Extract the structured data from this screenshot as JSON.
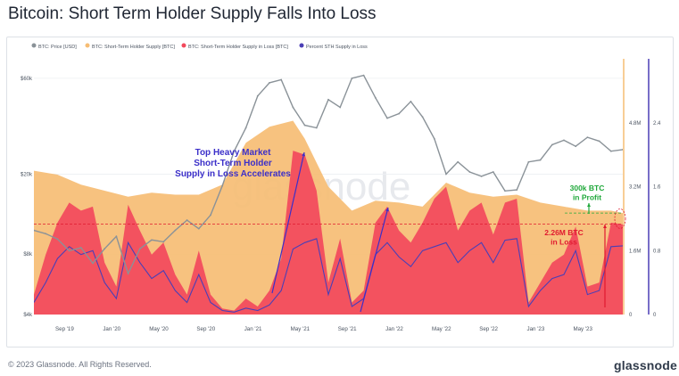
{
  "title": "Bitcoin: Short Term Holder Supply Falls Into Loss",
  "footer": {
    "copyright": "© 2023 Glassnode. All Rights Reserved.",
    "brand": "glassnode"
  },
  "watermark": "glassnode",
  "colors": {
    "price": "#8a9298",
    "sth_supply": "#f6bd74",
    "sth_loss": "#f2495c",
    "percent_loss": "#4b3fb6",
    "annotation_blue": "#3b2fc9",
    "annotation_green": "#1fa83a",
    "annotation_red": "#e0192f"
  },
  "chart_data": {
    "type": "area",
    "legend": {
      "placement": "top-left",
      "entries": [
        {
          "key": "price",
          "label": "BTC: Price [USD]",
          "color": "#8a9298"
        },
        {
          "key": "sth_supply",
          "label": "BTC: Short-Term Holder Supply [BTC]",
          "color": "#f6bd74"
        },
        {
          "key": "sth_loss",
          "label": "BTC: Short-Term Holder Supply in Loss [BTC]",
          "color": "#f2495c"
        },
        {
          "key": "percent_loss",
          "label": "Percent STH Supply in Loss",
          "color": "#4b3fb6"
        }
      ]
    },
    "x_ticks": [
      "Sep '19",
      "Jan '20",
      "May '20",
      "Sep '20",
      "Jan '21",
      "May '21",
      "Sep '21",
      "Jan '22",
      "May '22",
      "Sep '22",
      "Jan '23",
      "May '23"
    ],
    "x_range": [
      "2019-07",
      "2023-09"
    ],
    "y_left": {
      "scale": "log",
      "ticks": [
        "$4k",
        "$8k",
        "$20k",
        "$60k"
      ],
      "range": [
        4000,
        75000
      ]
    },
    "y_supply": {
      "ticks": [
        "0",
        "1.6M",
        "3.2M",
        "4.8M"
      ],
      "range": [
        0,
        6400000
      ]
    },
    "y_percent": {
      "ticks": [
        "0",
        "0.8",
        "1.6",
        "2.4"
      ],
      "range": [
        0,
        3.2
      ]
    },
    "series": [
      {
        "name": "BTC: Price [USD]",
        "axis": "left",
        "points": [
          [
            "2019-07",
            10500
          ],
          [
            "2019-08",
            10100
          ],
          [
            "2019-09",
            9500
          ],
          [
            "2019-10",
            8300
          ],
          [
            "2019-11",
            8600
          ],
          [
            "2019-12",
            7200
          ],
          [
            "2020-01",
            8500
          ],
          [
            "2020-02",
            9800
          ],
          [
            "2020-03",
            6400
          ],
          [
            "2020-04",
            8500
          ],
          [
            "2020-05",
            9400
          ],
          [
            "2020-06",
            9200
          ],
          [
            "2020-07",
            10500
          ],
          [
            "2020-08",
            11800
          ],
          [
            "2020-09",
            10700
          ],
          [
            "2020-10",
            12500
          ],
          [
            "2020-11",
            17500
          ],
          [
            "2020-12",
            26000
          ],
          [
            "2021-01",
            34000
          ],
          [
            "2021-02",
            49000
          ],
          [
            "2021-03",
            57000
          ],
          [
            "2021-04",
            59000
          ],
          [
            "2021-05",
            43000
          ],
          [
            "2021-06",
            35000
          ],
          [
            "2021-07",
            34000
          ],
          [
            "2021-08",
            47000
          ],
          [
            "2021-09",
            43000
          ],
          [
            "2021-10",
            60000
          ],
          [
            "2021-11",
            62000
          ],
          [
            "2021-12",
            48000
          ],
          [
            "2022-01",
            38000
          ],
          [
            "2022-02",
            40000
          ],
          [
            "2022-03",
            46000
          ],
          [
            "2022-04",
            38500
          ],
          [
            "2022-05",
            30000
          ],
          [
            "2022-06",
            20000
          ],
          [
            "2022-07",
            23000
          ],
          [
            "2022-08",
            20500
          ],
          [
            "2022-09",
            19500
          ],
          [
            "2022-10",
            20500
          ],
          [
            "2022-11",
            16500
          ],
          [
            "2022-12",
            16700
          ],
          [
            "2023-01",
            23000
          ],
          [
            "2023-02",
            23500
          ],
          [
            "2023-03",
            28000
          ],
          [
            "2023-04",
            29500
          ],
          [
            "2023-05",
            27500
          ],
          [
            "2023-06",
            30500
          ],
          [
            "2023-07",
            29200
          ],
          [
            "2023-08",
            26000
          ],
          [
            "2023-09",
            26500
          ]
        ]
      },
      {
        "name": "BTC: Short-Term Holder Supply [BTC]",
        "axis": "supply",
        "points": [
          [
            "2019-07",
            3600000
          ],
          [
            "2019-09",
            3500000
          ],
          [
            "2019-11",
            3250000
          ],
          [
            "2020-01",
            3100000
          ],
          [
            "2020-03",
            2950000
          ],
          [
            "2020-05",
            3050000
          ],
          [
            "2020-07",
            3000000
          ],
          [
            "2020-09",
            3000000
          ],
          [
            "2020-11",
            3250000
          ],
          [
            "2021-01",
            4300000
          ],
          [
            "2021-03",
            4700000
          ],
          [
            "2021-05",
            4850000
          ],
          [
            "2021-06",
            4400000
          ],
          [
            "2021-08",
            3200000
          ],
          [
            "2021-10",
            2600000
          ],
          [
            "2021-12",
            2850000
          ],
          [
            "2022-02",
            2800000
          ],
          [
            "2022-04",
            2700000
          ],
          [
            "2022-06",
            3300000
          ],
          [
            "2022-08",
            3050000
          ],
          [
            "2022-10",
            2950000
          ],
          [
            "2022-12",
            3000000
          ],
          [
            "2023-02",
            2800000
          ],
          [
            "2023-04",
            2700000
          ],
          [
            "2023-06",
            2600000
          ],
          [
            "2023-08",
            2600000
          ],
          [
            "2023-09",
            2540000
          ]
        ]
      },
      {
        "name": "BTC: Short-Term Holder Supply in Loss [BTC]",
        "axis": "supply",
        "points": [
          [
            "2019-07",
            500000
          ],
          [
            "2019-08",
            1500000
          ],
          [
            "2019-09",
            2300000
          ],
          [
            "2019-10",
            2800000
          ],
          [
            "2019-11",
            2600000
          ],
          [
            "2019-12",
            2700000
          ],
          [
            "2020-01",
            1300000
          ],
          [
            "2020-02",
            700000
          ],
          [
            "2020-03",
            2750000
          ],
          [
            "2020-04",
            2100000
          ],
          [
            "2020-05",
            1500000
          ],
          [
            "2020-06",
            1800000
          ],
          [
            "2020-07",
            1000000
          ],
          [
            "2020-08",
            500000
          ],
          [
            "2020-09",
            1600000
          ],
          [
            "2020-10",
            500000
          ],
          [
            "2020-11",
            150000
          ],
          [
            "2020-12",
            100000
          ],
          [
            "2021-01",
            400000
          ],
          [
            "2021-02",
            200000
          ],
          [
            "2021-03",
            600000
          ],
          [
            "2021-04",
            1400000
          ],
          [
            "2021-05",
            4100000
          ],
          [
            "2021-06",
            4000000
          ],
          [
            "2021-07",
            3100000
          ],
          [
            "2021-08",
            800000
          ],
          [
            "2021-09",
            1900000
          ],
          [
            "2021-10",
            300000
          ],
          [
            "2021-11",
            600000
          ],
          [
            "2021-12",
            2300000
          ],
          [
            "2022-01",
            2700000
          ],
          [
            "2022-02",
            2100000
          ],
          [
            "2022-03",
            1800000
          ],
          [
            "2022-04",
            2300000
          ],
          [
            "2022-05",
            2900000
          ],
          [
            "2022-06",
            3200000
          ],
          [
            "2022-07",
            2100000
          ],
          [
            "2022-08",
            2600000
          ],
          [
            "2022-09",
            2800000
          ],
          [
            "2022-10",
            2000000
          ],
          [
            "2022-11",
            2800000
          ],
          [
            "2022-12",
            2900000
          ],
          [
            "2023-01",
            300000
          ],
          [
            "2023-02",
            800000
          ],
          [
            "2023-03",
            1300000
          ],
          [
            "2023-04",
            1500000
          ],
          [
            "2023-05",
            2200000
          ],
          [
            "2023-06",
            700000
          ],
          [
            "2023-07",
            800000
          ],
          [
            "2023-08",
            2300000
          ],
          [
            "2023-09",
            2260000
          ]
        ]
      },
      {
        "name": "Percent STH Supply in Loss",
        "axis": "percent",
        "points": [
          [
            "2019-07",
            0.15
          ],
          [
            "2019-08",
            0.4
          ],
          [
            "2019-09",
            0.7
          ],
          [
            "2019-10",
            0.85
          ],
          [
            "2019-11",
            0.75
          ],
          [
            "2019-12",
            0.8
          ],
          [
            "2020-01",
            0.4
          ],
          [
            "2020-02",
            0.2
          ],
          [
            "2020-03",
            0.9
          ],
          [
            "2020-04",
            0.65
          ],
          [
            "2020-05",
            0.45
          ],
          [
            "2020-06",
            0.55
          ],
          [
            "2020-07",
            0.3
          ],
          [
            "2020-08",
            0.15
          ],
          [
            "2020-09",
            0.5
          ],
          [
            "2020-10",
            0.15
          ],
          [
            "2020-11",
            0.05
          ],
          [
            "2020-12",
            0.03
          ],
          [
            "2021-01",
            0.08
          ],
          [
            "2021-02",
            0.05
          ],
          [
            "2021-03",
            0.12
          ],
          [
            "2021-04",
            0.3
          ],
          [
            "2021-05",
            0.82
          ],
          [
            "2021-06",
            0.9
          ],
          [
            "2021-07",
            0.95
          ],
          [
            "2021-08",
            0.25
          ],
          [
            "2021-09",
            0.7
          ],
          [
            "2021-10",
            0.1
          ],
          [
            "2021-11",
            0.2
          ],
          [
            "2021-12",
            0.75
          ],
          [
            "2022-01",
            0.9
          ],
          [
            "2022-02",
            0.72
          ],
          [
            "2022-03",
            0.6
          ],
          [
            "2022-04",
            0.8
          ],
          [
            "2022-05",
            0.85
          ],
          [
            "2022-06",
            0.9
          ],
          [
            "2022-07",
            0.65
          ],
          [
            "2022-08",
            0.8
          ],
          [
            "2022-09",
            0.9
          ],
          [
            "2022-10",
            0.65
          ],
          [
            "2022-11",
            0.93
          ],
          [
            "2022-12",
            0.95
          ],
          [
            "2023-01",
            0.1
          ],
          [
            "2023-02",
            0.3
          ],
          [
            "2023-03",
            0.45
          ],
          [
            "2023-04",
            0.5
          ],
          [
            "2023-05",
            0.8
          ],
          [
            "2023-06",
            0.25
          ],
          [
            "2023-07",
            0.3
          ],
          [
            "2023-08",
            0.85
          ],
          [
            "2023-09",
            0.86
          ]
        ]
      }
    ],
    "annotations": [
      {
        "key": "top_heavy",
        "lines": [
          "Top Heavy Market",
          "Short-Term Holder",
          "Supply in Loss Accelerates"
        ],
        "color": "#3b2fc9"
      },
      {
        "key": "in_profit",
        "lines": [
          "300k BTC",
          "in Profit"
        ],
        "color": "#1fa83a"
      },
      {
        "key": "in_loss",
        "lines": [
          "2.26M BTC",
          "in Loss"
        ],
        "color": "#e0192f"
      }
    ]
  }
}
